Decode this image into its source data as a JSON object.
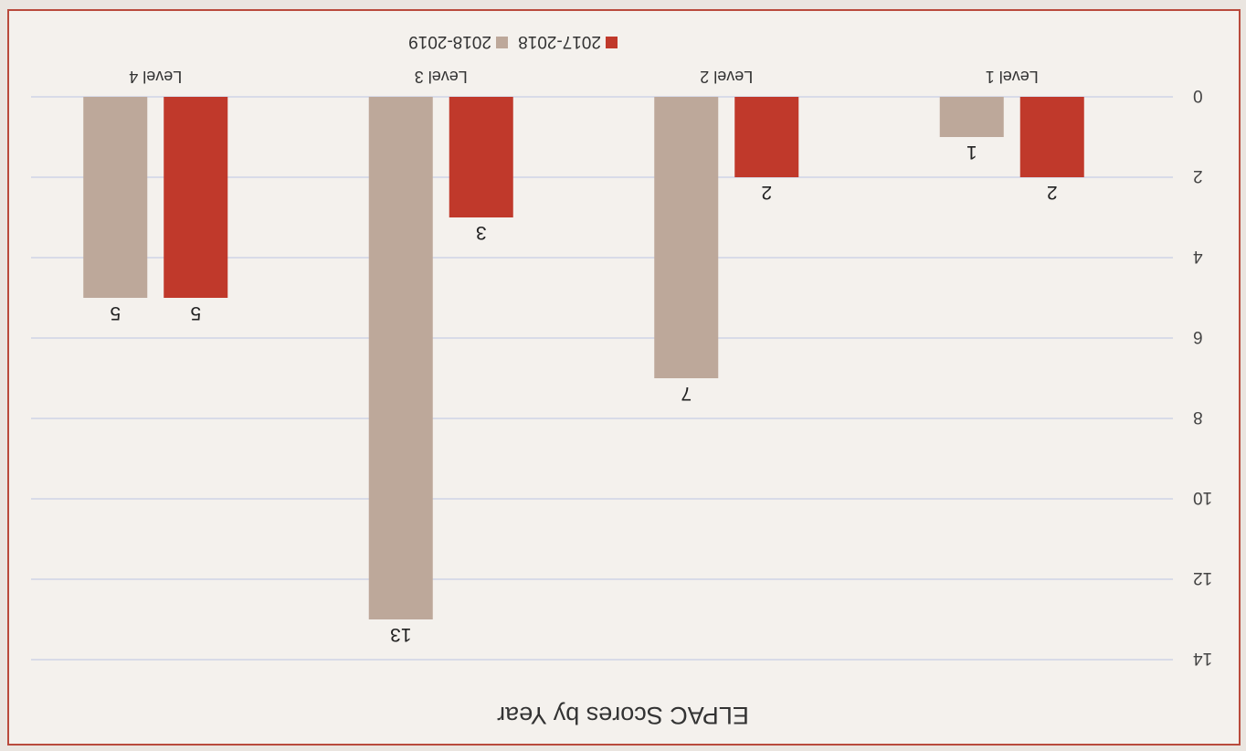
{
  "chart_data": {
    "type": "bar",
    "title": "ELPAC Scores by Year",
    "categories": [
      "Level 1",
      "Level 2",
      "Level 3",
      "Level 4"
    ],
    "series": [
      {
        "name": "2017-2018",
        "values": [
          2,
          2,
          3,
          5
        ],
        "color": "#c0392b"
      },
      {
        "name": "2018-2019",
        "values": [
          1,
          7,
          13,
          5
        ],
        "color": "#bda89a"
      }
    ],
    "ylim": [
      0,
      14
    ],
    "yticks": [
      0,
      2,
      4,
      6,
      8,
      10,
      12,
      14
    ],
    "grid": true,
    "legend": "top",
    "orientation": "rotated-180"
  }
}
